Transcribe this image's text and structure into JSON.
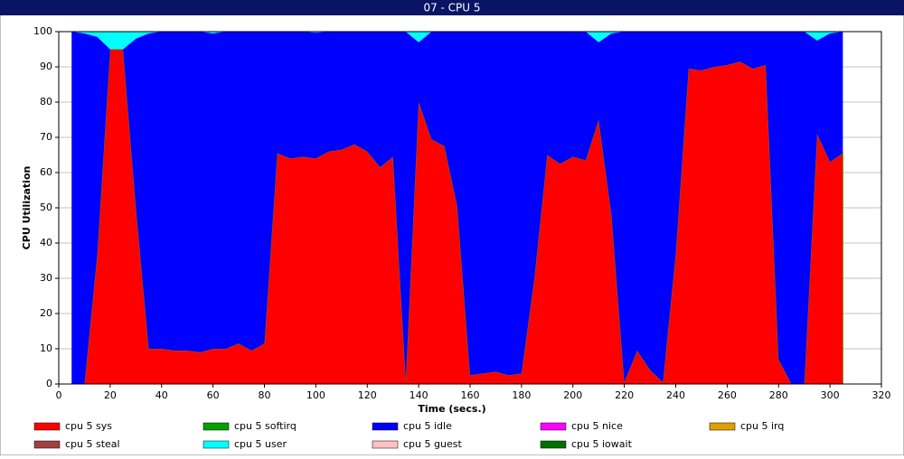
{
  "chart_data": {
    "type": "stacked_area",
    "title": "07 - CPU 5",
    "x_label": "Time (secs.)",
    "y_label": "CPU Utilization",
    "x": [
      5,
      10,
      15,
      20,
      25,
      30,
      35,
      40,
      45,
      50,
      55,
      60,
      65,
      70,
      75,
      80,
      85,
      90,
      95,
      100,
      105,
      110,
      115,
      120,
      125,
      130,
      135,
      140,
      145,
      150,
      155,
      160,
      165,
      170,
      175,
      180,
      185,
      190,
      195,
      200,
      205,
      210,
      215,
      220,
      225,
      230,
      235,
      240,
      245,
      250,
      255,
      260,
      265,
      270,
      275,
      280,
      285,
      290,
      295,
      300,
      305
    ],
    "xlim": [
      0,
      320
    ],
    "xticks": [
      0,
      20,
      40,
      60,
      80,
      100,
      120,
      140,
      160,
      180,
      200,
      220,
      240,
      260,
      280,
      300,
      320
    ],
    "ylim": [
      0,
      100
    ],
    "yticks": [
      0,
      10,
      20,
      30,
      40,
      50,
      60,
      70,
      80,
      90,
      100
    ],
    "grid": true,
    "series": [
      {
        "name": "cpu 5 sys",
        "color": "#ff0000",
        "values": [
          0,
          0,
          37,
          95,
          95,
          50,
          10,
          10,
          9.5,
          9.5,
          9,
          10,
          10,
          11.5,
          9.5,
          11.5,
          65.5,
          64,
          64.5,
          64,
          66,
          66.5,
          68,
          66,
          61.5,
          64.5,
          1,
          80,
          69.5,
          67.5,
          50.5,
          2.5,
          3,
          3.5,
          2.5,
          3,
          30,
          65,
          62.5,
          64.5,
          63.5,
          75,
          48,
          0.5,
          9.5,
          4,
          0.5,
          37,
          89.5,
          89,
          90,
          90.5,
          91.5,
          89.5,
          90.5,
          7,
          0,
          0,
          71,
          63,
          65.5
        ]
      },
      {
        "name": "cpu 5 softirq",
        "color": "#00a000",
        "values": [
          0,
          0,
          0,
          0,
          0,
          0,
          0,
          0,
          0,
          0,
          0,
          0,
          0,
          0,
          0,
          0,
          0,
          0,
          0,
          0,
          0,
          0,
          0,
          0,
          0,
          0,
          0,
          0,
          0,
          0,
          0,
          0,
          0,
          0,
          0,
          0,
          0,
          0,
          0,
          0,
          0,
          0,
          0,
          0,
          0,
          0,
          0,
          0,
          0,
          0,
          0,
          0,
          0,
          0,
          0,
          0,
          0,
          0,
          0,
          0,
          0
        ]
      },
      {
        "name": "cpu 5 idle",
        "color": "#0000ff",
        "values": [
          100,
          99.5,
          61.5,
          0,
          0,
          48,
          89.5,
          90,
          90.5,
          90.5,
          91,
          89.5,
          90,
          88.5,
          90.5,
          88.5,
          34.5,
          36,
          35.5,
          35.7,
          34,
          33.5,
          32,
          34,
          38.5,
          35.5,
          99,
          17,
          30.5,
          32.5,
          49.5,
          97.5,
          97,
          96.5,
          97.5,
          97,
          70,
          35,
          37.5,
          35.5,
          36.5,
          22,
          51.5,
          99.5,
          90.5,
          96,
          99.5,
          63,
          10.5,
          11,
          10,
          9.5,
          8.5,
          10.5,
          9.5,
          93,
          100,
          100,
          26.5,
          36.5,
          34.5
        ]
      },
      {
        "name": "cpu 5 nice",
        "color": "#ff00ff",
        "values": [
          0,
          0,
          0,
          0,
          0,
          0,
          0,
          0,
          0,
          0,
          0,
          0,
          0,
          0,
          0,
          0,
          0,
          0,
          0,
          0,
          0,
          0,
          0,
          0,
          0,
          0,
          0,
          0,
          0,
          0,
          0,
          0,
          0,
          0,
          0,
          0,
          0,
          0,
          0,
          0,
          0,
          0,
          0,
          0,
          0,
          0,
          0,
          0,
          0,
          0,
          0,
          0,
          0,
          0,
          0,
          0,
          0,
          0,
          0,
          0,
          0
        ]
      },
      {
        "name": "cpu 5 irq",
        "color": "#e0a000",
        "values": [
          0,
          0,
          0,
          0,
          0,
          0,
          0,
          0,
          0,
          0,
          0,
          0,
          0,
          0,
          0,
          0,
          0,
          0,
          0,
          0,
          0,
          0,
          0,
          0,
          0,
          0,
          0,
          0,
          0,
          0,
          0,
          0,
          0,
          0,
          0,
          0,
          0,
          0,
          0,
          0,
          0,
          0,
          0,
          0,
          0,
          0,
          0,
          0,
          0,
          0,
          0,
          0,
          0,
          0,
          0,
          0,
          0,
          0,
          0,
          0,
          0
        ]
      },
      {
        "name": "cpu 5 steal",
        "color": "#a04040",
        "values": [
          0,
          0,
          0,
          0,
          0,
          0,
          0,
          0,
          0,
          0,
          0,
          0,
          0,
          0,
          0,
          0,
          0,
          0,
          0,
          0,
          0,
          0,
          0,
          0,
          0,
          0,
          0,
          0,
          0,
          0,
          0,
          0,
          0,
          0,
          0,
          0,
          0,
          0,
          0,
          0,
          0,
          0,
          0,
          0,
          0,
          0,
          0,
          0,
          0,
          0,
          0,
          0,
          0,
          0,
          0,
          0,
          0,
          0,
          0,
          0,
          0
        ]
      },
      {
        "name": "cpu 5 user",
        "color": "#00ffff",
        "values": [
          0,
          0.5,
          1.5,
          5,
          5,
          2,
          0.5,
          0,
          0,
          0,
          0,
          0.5,
          0,
          0,
          0,
          0,
          0,
          0,
          0,
          0.3,
          0,
          0,
          0,
          0,
          0,
          0,
          0,
          3,
          0,
          0,
          0,
          0,
          0,
          0,
          0,
          0,
          0,
          0,
          0,
          0,
          0,
          3,
          0.5,
          0,
          0,
          0,
          0,
          0,
          0,
          0,
          0,
          0,
          0,
          0,
          0,
          0,
          0,
          0,
          2.5,
          0.5,
          0
        ]
      },
      {
        "name": "cpu 5 guest",
        "color": "#ffc0c0",
        "values": [
          0,
          0,
          0,
          0,
          0,
          0,
          0,
          0,
          0,
          0,
          0,
          0,
          0,
          0,
          0,
          0,
          0,
          0,
          0,
          0,
          0,
          0,
          0,
          0,
          0,
          0,
          0,
          0,
          0,
          0,
          0,
          0,
          0,
          0,
          0,
          0,
          0,
          0,
          0,
          0,
          0,
          0,
          0,
          0,
          0,
          0,
          0,
          0,
          0,
          0,
          0,
          0,
          0,
          0,
          0,
          0,
          0,
          0,
          0,
          0,
          0
        ]
      },
      {
        "name": "cpu 5 iowait",
        "color": "#007000",
        "values": [
          0,
          0,
          0,
          0,
          0,
          0,
          0,
          0,
          0,
          0,
          0,
          0,
          0,
          0,
          0,
          0,
          0,
          0,
          0,
          0,
          0,
          0,
          0,
          0,
          0,
          0,
          0,
          0,
          0,
          0,
          0,
          0,
          0,
          0,
          0,
          0,
          0,
          0,
          0,
          0,
          0,
          0,
          0,
          0,
          0,
          0,
          0,
          0,
          0,
          0,
          0,
          0,
          0,
          0,
          0,
          0,
          0,
          0,
          0,
          0,
          0
        ]
      }
    ]
  }
}
